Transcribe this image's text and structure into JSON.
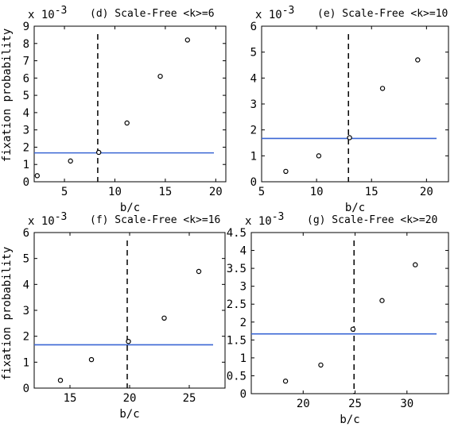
{
  "figure": {
    "ylabel": "fixation probability",
    "xlabel": "b/c",
    "exponent_label": "x 10",
    "exponent": "-3"
  },
  "chart_data": [
    {
      "type": "scatter",
      "panel": "d",
      "title": "(d)  Scale-Free <k>=6",
      "xlabel": "b/c",
      "ylabel": "fixation probability",
      "xlim": [
        2,
        21
      ],
      "ylim": [
        0,
        9
      ],
      "xticks": [
        5,
        10,
        15,
        20
      ],
      "yticks": [
        0,
        1,
        2,
        3,
        4,
        5,
        6,
        7,
        8,
        9
      ],
      "y_scale_factor": "x 10^-3",
      "points": [
        {
          "x": 2.3,
          "y": 0.35
        },
        {
          "x": 5.6,
          "y": 1.2
        },
        {
          "x": 8.4,
          "y": 1.7
        },
        {
          "x": 11.2,
          "y": 3.4
        },
        {
          "x": 14.5,
          "y": 6.1
        },
        {
          "x": 17.2,
          "y": 8.2
        }
      ],
      "horizontal_line": {
        "y": 1.67,
        "color": "#3a66d4"
      },
      "vertical_line": {
        "x": 8.3,
        "style": "dashed"
      }
    },
    {
      "type": "scatter",
      "panel": "e",
      "title": "(e)  Scale-Free <k>=10",
      "xlabel": "b/c",
      "ylabel": "",
      "xlim": [
        5,
        22
      ],
      "ylim": [
        0,
        6
      ],
      "xticks": [
        5,
        10,
        15,
        20
      ],
      "yticks": [
        0,
        1,
        2,
        3,
        4,
        5,
        6
      ],
      "y_scale_factor": "x 10^-3",
      "points": [
        {
          "x": 7.2,
          "y": 0.4
        },
        {
          "x": 10.2,
          "y": 1.0
        },
        {
          "x": 13.0,
          "y": 1.7
        },
        {
          "x": 16.0,
          "y": 3.6
        },
        {
          "x": 19.2,
          "y": 4.7
        }
      ],
      "horizontal_line": {
        "y": 1.67,
        "color": "#3a66d4"
      },
      "vertical_line": {
        "x": 12.9,
        "style": "dashed"
      }
    },
    {
      "type": "scatter",
      "panel": "f",
      "title": "(f)  Scale-Free <k>=16",
      "xlabel": "b/c",
      "ylabel": "fixation probability",
      "xlim": [
        12,
        28
      ],
      "ylim": [
        0,
        6
      ],
      "xticks": [
        15,
        20,
        25
      ],
      "yticks": [
        0,
        1,
        2,
        3,
        4,
        5,
        6
      ],
      "y_scale_factor": "x 10^-3",
      "points": [
        {
          "x": 14.2,
          "y": 0.3
        },
        {
          "x": 16.8,
          "y": 1.1
        },
        {
          "x": 19.9,
          "y": 1.8
        },
        {
          "x": 22.9,
          "y": 2.7
        },
        {
          "x": 25.8,
          "y": 4.5
        }
      ],
      "horizontal_line": {
        "y": 1.67,
        "color": "#3a66d4"
      },
      "vertical_line": {
        "x": 19.8,
        "style": "dashed"
      }
    },
    {
      "type": "scatter",
      "panel": "g",
      "title": "(g)  Scale-Free <k>=20",
      "xlabel": "b/c",
      "ylabel": "",
      "xlim": [
        15,
        34
      ],
      "ylim": [
        0,
        4.5
      ],
      "xticks": [
        20,
        25,
        30
      ],
      "yticks": [
        0,
        0.5,
        1,
        1.5,
        2,
        2.5,
        3,
        3.5,
        4,
        4.5
      ],
      "y_scale_factor": "x 10^-3",
      "points": [
        {
          "x": 18.3,
          "y": 0.35
        },
        {
          "x": 21.7,
          "y": 0.8
        },
        {
          "x": 24.8,
          "y": 1.8
        },
        {
          "x": 27.6,
          "y": 2.6
        },
        {
          "x": 30.8,
          "y": 3.6
        }
      ],
      "horizontal_line": {
        "y": 1.67,
        "color": "#3a66d4"
      },
      "vertical_line": {
        "x": 24.9,
        "style": "dashed"
      }
    }
  ]
}
